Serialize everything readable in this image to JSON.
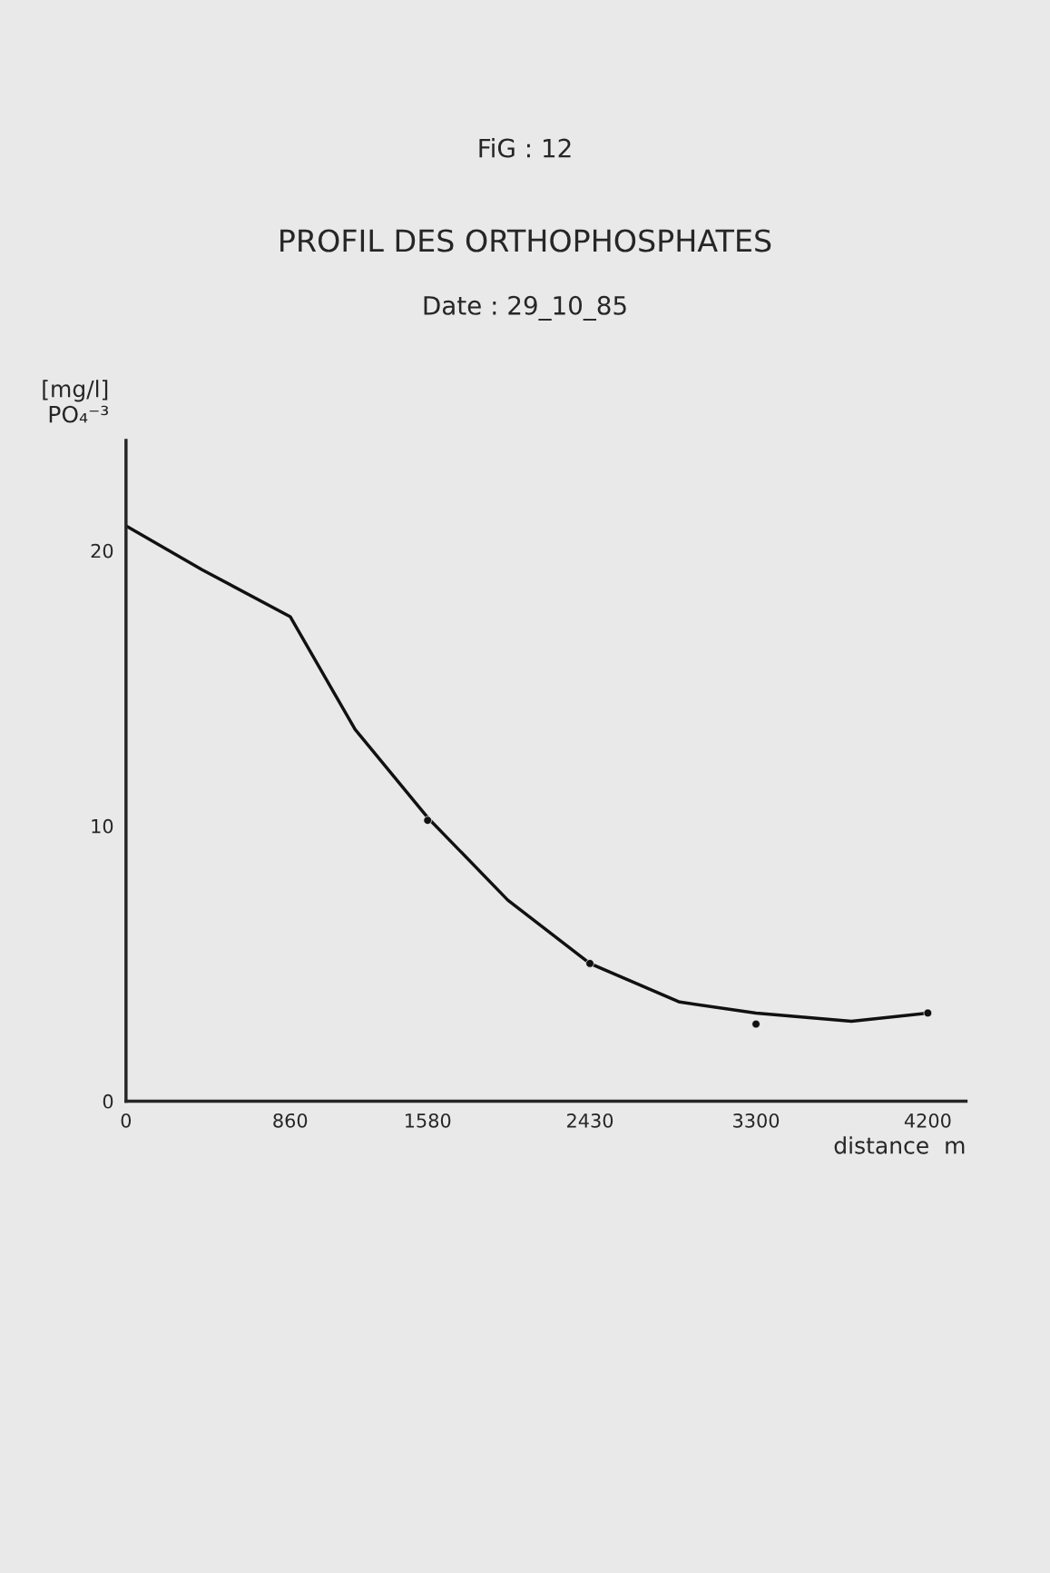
{
  "chart_data": {
    "type": "line",
    "title": "PROFIL DES ORTHOPHOSPHATES",
    "subtitle": "Date : 29_10_85",
    "annotations": [
      "FiG : 12"
    ],
    "xlabel": "distance  m",
    "ylabel": "[mg/l]\nPO₄⁻³",
    "xlim": [
      0,
      4400
    ],
    "xticks": [
      0,
      860,
      1580,
      2430,
      3300,
      4200
    ],
    "ylim": [
      0,
      24
    ],
    "yticks": [
      0,
      10,
      20
    ],
    "grid": false,
    "series": [
      {
        "color": "#111111",
        "marker": "none",
        "x": [
          0,
          400,
          860,
          1200,
          1580,
          2000,
          2430,
          2900,
          3300,
          3800,
          4200
        ],
        "values": [
          20.9,
          19.3,
          17.6,
          13.5,
          10.3,
          7.3,
          5.0,
          3.6,
          3.2,
          2.9,
          3.2
        ]
      },
      {
        "type": "scatter",
        "color": "#111111",
        "marker": "circle",
        "x": [
          1580,
          2430,
          3300,
          4200
        ],
        "values": [
          10.2,
          5.0,
          2.8,
          3.2
        ]
      }
    ]
  }
}
